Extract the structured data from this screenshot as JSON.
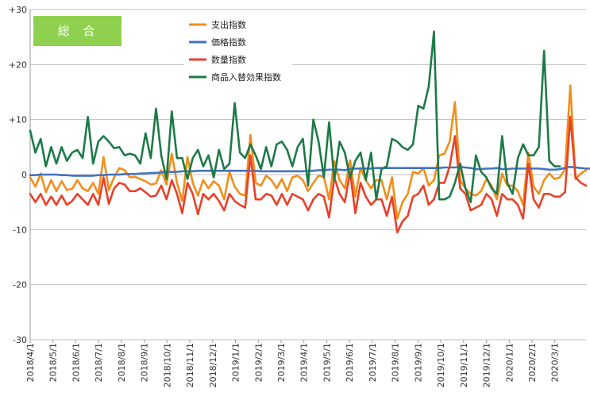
{
  "chart_data": {
    "type": "line",
    "title": "総 合",
    "title_box_color": "#8fd14f",
    "ylim": [
      -30,
      30
    ],
    "yticks": [
      {
        "value": 30,
        "label": "+30"
      },
      {
        "value": 20,
        "label": "+20"
      },
      {
        "value": 10,
        "label": "+10"
      },
      {
        "value": 0,
        "label": "0"
      },
      {
        "value": -10,
        "label": "-10"
      },
      {
        "value": -20,
        "label": "-20"
      },
      {
        "value": -30,
        "label": "-30"
      }
    ],
    "grid": true,
    "legend_position": "top-center",
    "x_tick_labels": [
      "2018/4/1",
      "2018/5/1",
      "2018/6/1",
      "2018/7/1",
      "2018/8/1",
      "2018/9/1",
      "2018/10/1",
      "2018/11/1",
      "2018/12/1",
      "2019/1/1",
      "2019/2/1",
      "2019/3/1",
      "2019/4/1",
      "2019/5/1",
      "2019/6/1",
      "2019/7/1",
      "2019/8/1",
      "2019/9/1",
      "2019/10/1",
      "2019/11/1",
      "2019/12/1",
      "2020/1/1",
      "2020/2/1",
      "2020/3/1"
    ],
    "points_per_month": 4.35,
    "series": [
      {
        "name": "支出指数",
        "color": "#f28e1c",
        "values": [
          -0.5,
          -2.2,
          0.2,
          -3.2,
          -1.0,
          -3.0,
          -1.2,
          -2.8,
          -2.6,
          -1.0,
          -2.5,
          -3.0,
          -1.5,
          -3.5,
          3.2,
          -2.8,
          -0.5,
          1.2,
          0.8,
          -0.5,
          -0.4,
          -0.8,
          -1.2,
          -1.8,
          -1.6,
          0.8,
          -1.8,
          3.8,
          -1.5,
          -4.8,
          3.2,
          -1.5,
          -3.8,
          -1.0,
          -2.5,
          -1.2,
          -2.0,
          -4.5,
          0.5,
          -2.2,
          -3.5,
          -3.8,
          7.2,
          -1.5,
          -2.0,
          -0.2,
          -1.0,
          -2.5,
          -0.8,
          -3.0,
          -0.5,
          -0.2,
          -1.0,
          -3.0,
          -1.5,
          -0.2,
          -0.4,
          -4.5,
          2.5,
          -1.0,
          -2.5,
          2.6,
          -4.0,
          1.2,
          -1.0,
          -2.5,
          -1.0,
          -1.0,
          -4.5,
          -0.5,
          -8.0,
          -5.0,
          -3.5,
          0.5,
          0.2,
          1.2,
          -2.0,
          -1.0,
          3.5,
          3.8,
          6.0,
          13.2,
          -1.0,
          -2.5,
          -3.5,
          -3.8,
          -3.0,
          -0.8,
          -2.0,
          -4.5,
          0.2,
          -2.0,
          -2.0,
          -3.0,
          -5.5,
          4.0,
          -2.2,
          -3.5,
          -1.0,
          0.2,
          -0.8,
          -0.5,
          1.0,
          16.2,
          -0.8,
          0.2,
          0.8
        ]
      },
      {
        "name": "価格指数",
        "color": "#4472c4",
        "values": [
          -0.1,
          -0.1,
          0.0,
          0.0,
          0.0,
          0.0,
          -0.1,
          -0.1,
          -0.2,
          -0.2,
          -0.2,
          -0.2,
          -0.2,
          -0.1,
          -0.1,
          0.0,
          0.0,
          0.0,
          0.1,
          0.1,
          0.1,
          0.2,
          0.2,
          0.3,
          0.3,
          0.4,
          0.5,
          0.5,
          0.5,
          0.6,
          0.6,
          0.6,
          0.7,
          0.7,
          0.7,
          0.7,
          0.7,
          0.7,
          0.7,
          0.7,
          0.7,
          0.7,
          0.7,
          0.7,
          0.6,
          0.6,
          0.6,
          0.6,
          0.6,
          0.6,
          0.6,
          0.6,
          0.6,
          0.7,
          0.7,
          0.8,
          0.8,
          0.9,
          0.9,
          0.9,
          0.8,
          1.0,
          1.1,
          1.1,
          1.1,
          1.1,
          1.2,
          1.2,
          1.2,
          1.2,
          1.2,
          1.2,
          1.2,
          1.2,
          1.2,
          1.2,
          1.2,
          1.2,
          1.2,
          1.3,
          1.3,
          1.3,
          1.4,
          1.3,
          1.2,
          1.0,
          1.0,
          1.1,
          1.1,
          1.2,
          1.0,
          1.0,
          1.1,
          1.1,
          1.1,
          1.1,
          1.1,
          1.1,
          1.0,
          0.9,
          0.9,
          1.0,
          1.2,
          1.4,
          1.3,
          1.2,
          1.1,
          1.1
        ]
      },
      {
        "name": "数量指数",
        "color": "#e8412a",
        "values": [
          -3.5,
          -5.0,
          -3.5,
          -5.5,
          -4.0,
          -5.5,
          -3.8,
          -5.5,
          -4.8,
          -3.5,
          -4.5,
          -5.5,
          -3.5,
          -5.5,
          -0.5,
          -5.3,
          -2.5,
          -1.5,
          -1.8,
          -3.0,
          -3.0,
          -2.5,
          -3.2,
          -4.0,
          -3.8,
          -2.0,
          -4.5,
          -1.0,
          -3.5,
          -7.0,
          -1.5,
          -3.5,
          -7.2,
          -3.5,
          -4.5,
          -3.5,
          -4.8,
          -6.5,
          -3.5,
          -4.8,
          -5.5,
          -6.0,
          3.5,
          -4.5,
          -4.5,
          -3.5,
          -3.8,
          -5.5,
          -3.5,
          -5.5,
          -3.5,
          -4.0,
          -4.5,
          -6.5,
          -4.5,
          -3.5,
          -4.0,
          -7.8,
          -0.5,
          -3.5,
          -5.0,
          0.5,
          -7.0,
          -1.5,
          -4.0,
          -5.5,
          -4.5,
          -4.5,
          -7.5,
          -4.0,
          -10.5,
          -8.5,
          -7.5,
          -4.0,
          -3.5,
          -2.0,
          -5.5,
          -4.5,
          -1.5,
          -1.5,
          1.5,
          7.0,
          -2.5,
          -3.5,
          -6.5,
          -6.0,
          -5.5,
          -3.5,
          -4.5,
          -7.5,
          -3.5,
          -4.5,
          -4.5,
          -5.5,
          -8.0,
          2.0,
          -4.5,
          -6.0,
          -3.5,
          -3.5,
          -4.0,
          -4.0,
          -3.2,
          10.5,
          -0.5,
          -1.5,
          -2.0
        ]
      },
      {
        "name": "商品入替効果指数",
        "color": "#1d7a47",
        "values": [
          8.0,
          4.0,
          6.5,
          1.5,
          5.0,
          2.0,
          5.0,
          2.5,
          4.0,
          4.5,
          3.0,
          10.5,
          2.0,
          6.0,
          7.0,
          6.0,
          4.8,
          5.0,
          3.5,
          3.8,
          3.5,
          2.0,
          7.5,
          3.0,
          12.0,
          3.5,
          -0.8,
          11.5,
          3.0,
          3.0,
          -0.8,
          3.0,
          4.5,
          1.5,
          3.5,
          -0.5,
          4.5,
          1.0,
          2.0,
          13.0,
          4.0,
          3.0,
          5.5,
          3.5,
          1.0,
          5.0,
          1.5,
          5.5,
          6.0,
          4.5,
          1.5,
          5.0,
          6.5,
          -2.0,
          10.0,
          6.0,
          -0.5,
          9.5,
          -1.0,
          6.0,
          4.0,
          -0.5,
          2.5,
          4.0,
          -1.0,
          4.0,
          -4.5,
          1.0,
          1.5,
          6.5,
          6.0,
          5.0,
          4.5,
          5.5,
          12.5,
          12.0,
          16.0,
          26.0,
          -4.5,
          -4.5,
          -4.0,
          -1.5,
          2.0,
          -2.5,
          -5.0,
          3.5,
          0.5,
          -0.5,
          -2.5,
          -3.5,
          7.0,
          -1.5,
          -3.5,
          3.0,
          5.5,
          3.5,
          3.5,
          5.0,
          22.5,
          2.5,
          1.5,
          1.5
        ]
      }
    ]
  }
}
